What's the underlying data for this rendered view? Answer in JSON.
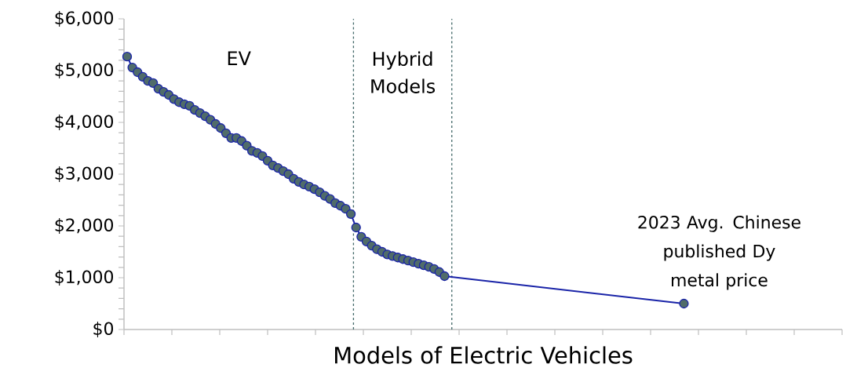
{
  "chart_data": {
    "type": "line",
    "xlabel": "Models of Electric Vehicles",
    "categories": [
      null,
      null,
      null,
      null,
      null,
      null,
      null,
      null,
      null,
      null,
      null,
      null,
      null,
      null,
      null,
      null,
      null,
      null,
      null,
      null,
      null,
      null,
      null,
      null,
      null,
      null,
      null,
      null,
      null,
      null,
      null,
      null,
      null,
      null,
      null,
      null,
      null,
      null,
      null,
      null,
      null,
      null,
      null,
      null,
      null,
      null,
      null,
      null,
      null,
      null,
      null,
      null,
      null,
      null,
      null,
      null,
      null,
      null,
      null,
      null,
      null,
      null,
      null,
      null,
      null,
      null,
      null,
      null,
      null,
      null,
      null,
      null,
      null,
      null,
      null,
      null,
      null,
      null,
      null,
      null,
      null,
      null,
      null,
      null,
      null,
      null,
      null,
      null,
      null,
      null,
      null,
      null,
      null,
      null,
      null,
      null,
      null,
      null,
      null,
      null,
      null,
      null,
      null,
      null,
      null,
      null,
      null,
      null,
      null,
      null,
      null,
      null,
      null,
      null,
      null,
      null,
      null,
      null,
      null,
      null,
      null,
      null,
      null,
      null,
      null,
      null,
      null,
      null,
      null,
      null,
      null,
      null,
      null,
      null,
      null,
      null,
      null,
      null
    ],
    "values": [
      5270,
      5060,
      4970,
      4880,
      4800,
      4760,
      4650,
      4590,
      4530,
      4450,
      4390,
      4350,
      4320,
      4240,
      4180,
      4120,
      4050,
      3970,
      3890,
      3790,
      3700,
      3700,
      3640,
      3550,
      3450,
      3410,
      3350,
      3260,
      3170,
      3120,
      3060,
      3000,
      2910,
      2850,
      2800,
      2760,
      2710,
      2650,
      2580,
      2520,
      2440,
      2390,
      2330,
      2230,
      1970,
      1790,
      1700,
      1620,
      1550,
      1500,
      1450,
      1420,
      1390,
      1360,
      1330,
      1300,
      1270,
      1240,
      1210,
      1170,
      1110,
      1030,
      null,
      null,
      null,
      null,
      null,
      null,
      null,
      null,
      null,
      null,
      null,
      null,
      null,
      null,
      null,
      null,
      null,
      null,
      null,
      null,
      null,
      null,
      null,
      null,
      null,
      null,
      null,
      null,
      null,
      null,
      null,
      null,
      null,
      null,
      null,
      null,
      null,
      null,
      null,
      null,
      null,
      null,
      null,
      null,
      null,
      500,
      null,
      null,
      null,
      null,
      null,
      null,
      null,
      null,
      null,
      null,
      null,
      null,
      null,
      null,
      null,
      null,
      null,
      null,
      null,
      null,
      null,
      null,
      null,
      null,
      null,
      null,
      null,
      null,
      null,
      null
    ],
    "color": "#1a24a8",
    "marker": "circle",
    "ylim": [
      0,
      6000
    ],
    "yticks": [
      {
        "value": 0,
        "label": "$0"
      },
      {
        "value": 200,
        "label": null
      },
      {
        "value": 400,
        "label": null
      },
      {
        "value": 600,
        "label": null
      },
      {
        "value": 800,
        "label": null
      },
      {
        "value": 1000,
        "label": "$1,000"
      },
      {
        "value": 1200,
        "label": null
      },
      {
        "value": 1400,
        "label": null
      },
      {
        "value": 1600,
        "label": null
      },
      {
        "value": 1800,
        "label": null
      },
      {
        "value": 2000,
        "label": "$2,000"
      },
      {
        "value": 2200,
        "label": null
      },
      {
        "value": 2400,
        "label": null
      },
      {
        "value": 2600,
        "label": null
      },
      {
        "value": 2800,
        "label": null
      },
      {
        "value": 3000,
        "label": "$3,000"
      },
      {
        "value": 3200,
        "label": null
      },
      {
        "value": 3400,
        "label": null
      },
      {
        "value": 3600,
        "label": null
      },
      {
        "value": 3800,
        "label": null
      },
      {
        "value": 4000,
        "label": "$4,000"
      },
      {
        "value": 4200,
        "label": null
      },
      {
        "value": 4400,
        "label": null
      },
      {
        "value": 4600,
        "label": null
      },
      {
        "value": 4800,
        "label": null
      },
      {
        "value": 5000,
        "label": "$5,000"
      },
      {
        "value": 5200,
        "label": null
      },
      {
        "value": 5400,
        "label": null
      },
      {
        "value": 5600,
        "label": null
      },
      {
        "value": 5800,
        "label": null
      },
      {
        "value": 6000,
        "label": "$6,000"
      }
    ],
    "annotations": [
      "EV",
      "Hybrid Models",
      "2023 Avg. Chinese published Dy metal price"
    ]
  }
}
